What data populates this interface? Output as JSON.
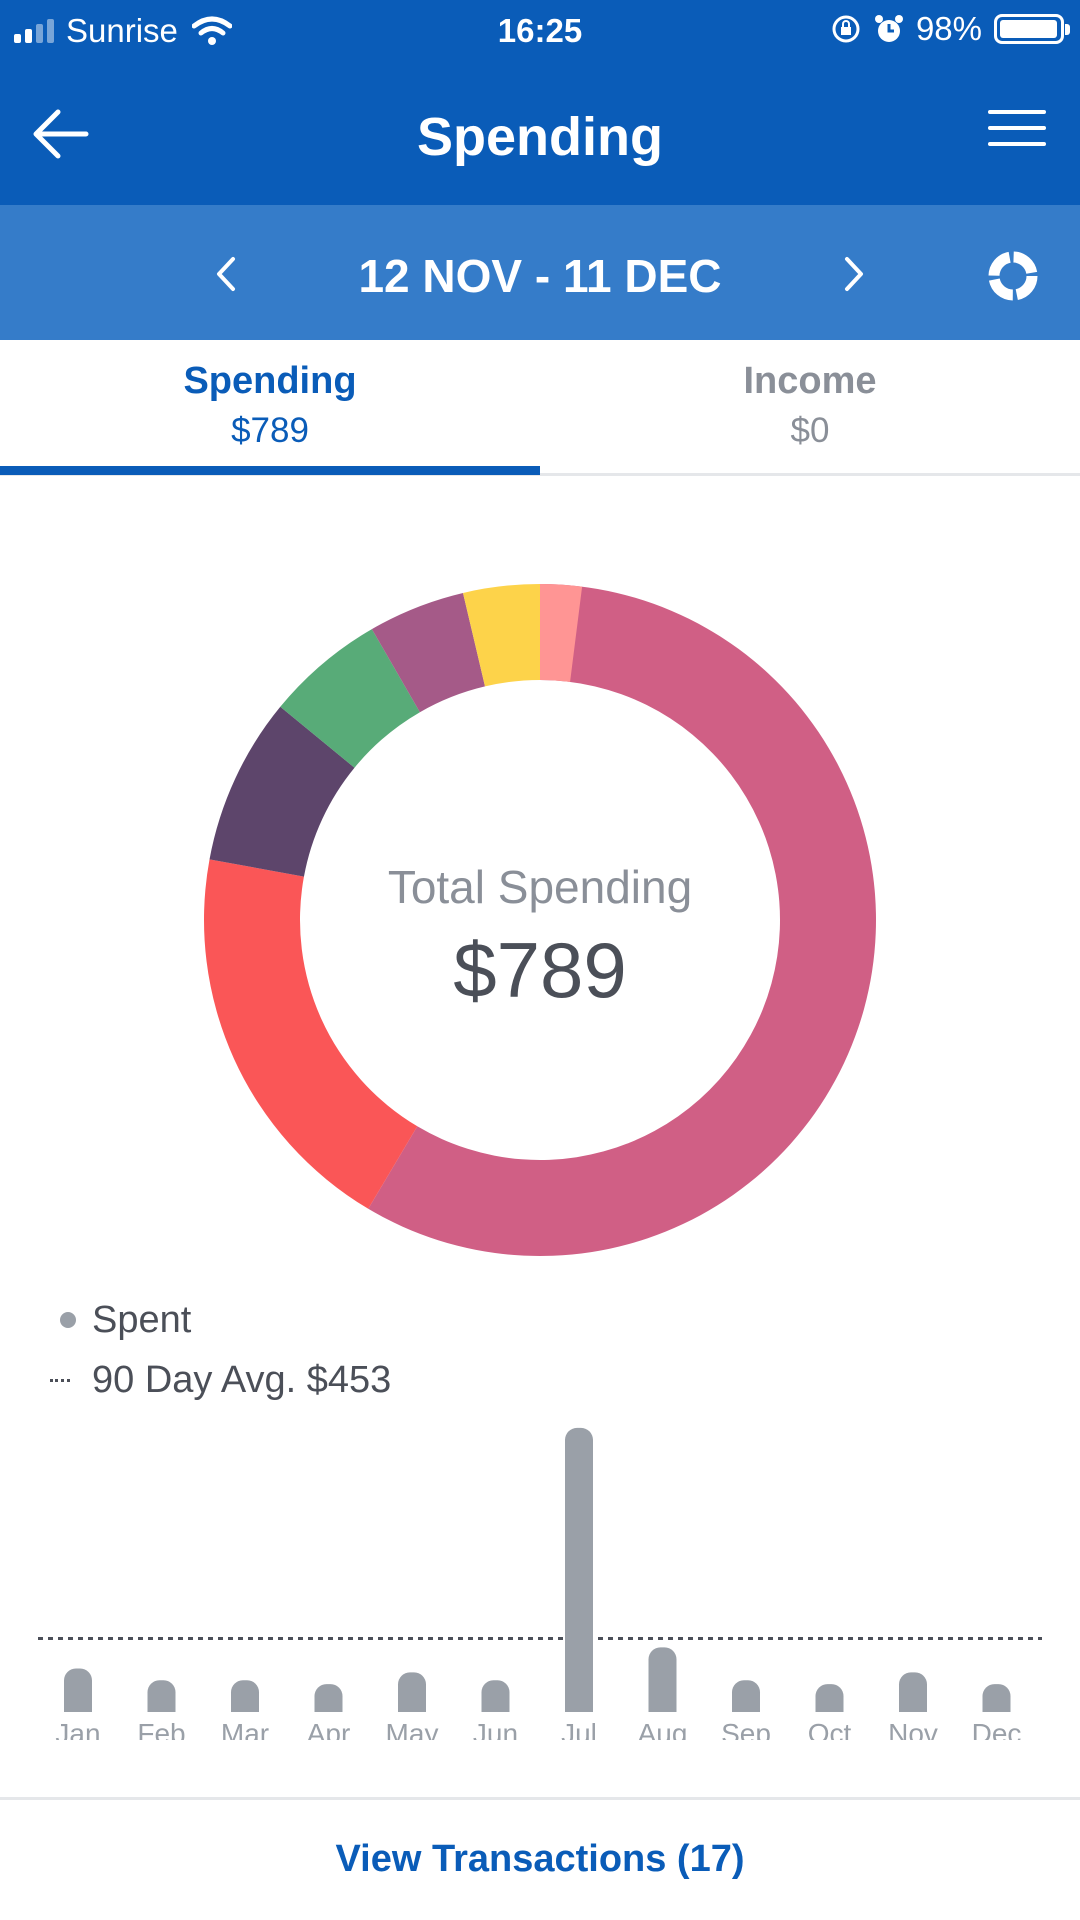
{
  "status_bar": {
    "carrier": "Sunrise",
    "time": "16:25",
    "battery": "98%",
    "battery_level": 0.98
  },
  "header": {
    "title": "Spending",
    "back_icon": "arrow-left-icon",
    "menu_icon": "hamburger-menu-icon"
  },
  "date_bar": {
    "range": "12 NOV - 11 DEC",
    "prev_icon": "chevron-left-icon",
    "next_icon": "chevron-right-icon",
    "toggle_icon": "donut-chart-icon"
  },
  "tabs": [
    {
      "label": "Spending",
      "value": "$789"
    },
    {
      "label": "Income",
      "value": "$0"
    }
  ],
  "donut": {
    "center_label": "Total Spending",
    "center_value": "$789"
  },
  "legend": {
    "spent_label": "Spent",
    "avg_label": "90 Day Avg. $453"
  },
  "footer": {
    "view_transactions": "View Transactions (17)"
  },
  "colors": {
    "brand_blue": "#0a5cb8",
    "date_bar_blue": "#357cc9",
    "bar_gray": "#9aa0a8"
  },
  "chart_data": [
    {
      "type": "pie",
      "variant": "donut",
      "title": "Total Spending",
      "total": 789,
      "slices": [
        {
          "value": 0.5854,
          "color": "#d05f85"
        },
        {
          "value": 0.1935,
          "color": "#fa5657"
        },
        {
          "value": 0.0805,
          "color": "#5d456b"
        },
        {
          "value": 0.0572,
          "color": "#58ab78"
        },
        {
          "value": 0.0466,
          "color": "#a55a88"
        },
        {
          "value": 0.0368,
          "color": "#fdd34a"
        },
        {
          "value": 0.0,
          "color": "#ff9594"
        }
      ]
    },
    {
      "type": "bar",
      "categories": [
        "Jan",
        "Feb",
        "Mar",
        "Apr",
        "May",
        "Jun",
        "Jul",
        "Aug",
        "Sep",
        "Oct",
        "Nov",
        "Dec"
      ],
      "series": [
        {
          "name": "Spent",
          "values": [
            530,
            380,
            380,
            330,
            480,
            380,
            3600,
            800,
            380,
            330,
            480,
            330
          ],
          "color": "#9aa0a8"
        }
      ],
      "reference_line": {
        "label": "90 Day Avg. $453",
        "value": 453
      },
      "ylim": [
        0,
        3650
      ]
    }
  ]
}
